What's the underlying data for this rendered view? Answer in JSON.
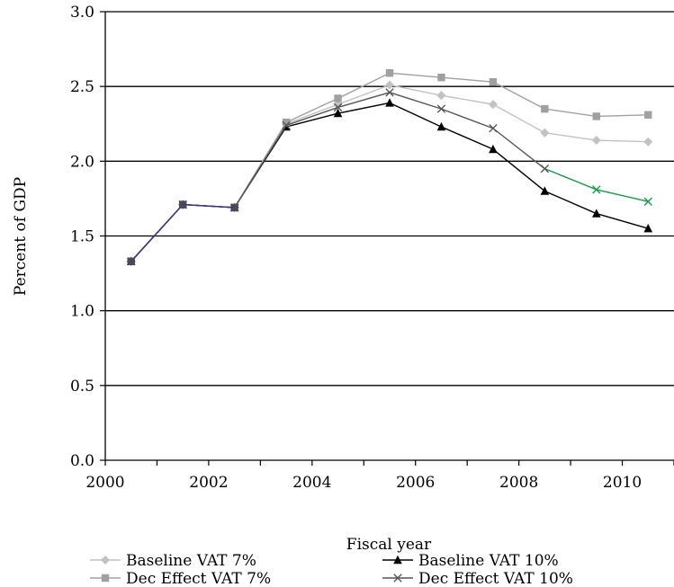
{
  "chart_data": {
    "type": "line",
    "title": "",
    "xlabel": "Fiscal year",
    "ylabel": "Percent of GDP",
    "x": [
      2000,
      2001,
      2002,
      2003,
      2004,
      2005,
      2006,
      2007,
      2008,
      2009,
      2010
    ],
    "xticks": [
      "2000",
      "2002",
      "2004",
      "2006",
      "2008",
      "2010"
    ],
    "yticks": [
      "0.0",
      "0.5",
      "1.0",
      "1.5",
      "2.0",
      "2.5",
      "3.0"
    ],
    "xlim": [
      2000,
      2010
    ],
    "ylim": [
      0,
      3
    ],
    "grid": "horizontal",
    "legend_position": "bottom",
    "series": [
      {
        "name": "Baseline VAT 7%",
        "marker": "diamond",
        "color": "#c2c2c2",
        "values": [
          1.33,
          1.71,
          1.69,
          2.25,
          2.38,
          2.51,
          2.44,
          2.38,
          2.19,
          2.14,
          2.13
        ]
      },
      {
        "name": "Baseline VAT 10%",
        "marker": "triangle",
        "color": "#000000",
        "values": [
          1.33,
          1.71,
          1.69,
          2.23,
          2.32,
          2.39,
          2.23,
          2.08,
          1.8,
          1.65,
          1.55
        ]
      },
      {
        "name": "Dec Effect VAT 7%",
        "marker": "square",
        "color": "#a0a0a0",
        "values": [
          1.33,
          1.71,
          1.69,
          2.26,
          2.42,
          2.59,
          2.56,
          2.53,
          2.35,
          2.3,
          2.31
        ]
      },
      {
        "name": "Dec Effect VAT 10%",
        "marker": "x",
        "color": "#555555",
        "tail_color": "#1a9a4a",
        "values": [
          1.33,
          1.71,
          1.69,
          2.24,
          2.36,
          2.46,
          2.35,
          2.22,
          1.95,
          1.81,
          1.73
        ]
      }
    ]
  }
}
